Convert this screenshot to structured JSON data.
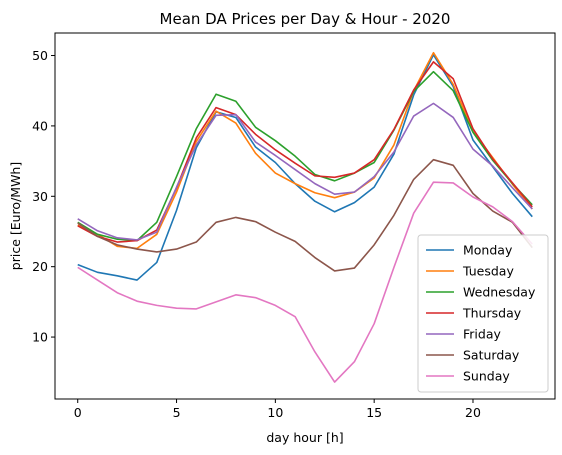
{
  "chart_data": {
    "type": "line",
    "title": "Mean DA Prices per Day & Hour - 2020",
    "xlabel": "day hour [h]",
    "ylabel": "price [Euro/MWh]",
    "xlim": [
      -1.15,
      24.15
    ],
    "ylim": [
      1.2,
      53.2
    ],
    "xticks": [
      0,
      5,
      10,
      15,
      20
    ],
    "yticks": [
      10,
      20,
      30,
      40,
      50
    ],
    "grid": false,
    "legend_position": "lower-right",
    "x": [
      0,
      1,
      2,
      3,
      4,
      5,
      6,
      7,
      8,
      9,
      10,
      11,
      12,
      13,
      14,
      15,
      16,
      17,
      18,
      19,
      20,
      21,
      22,
      23
    ],
    "series": [
      {
        "name": "Monday",
        "color": "#1f77b4",
        "values": [
          20.3,
          19.2,
          18.7,
          18.1,
          20.6,
          28.0,
          36.9,
          42.0,
          41.2,
          37.0,
          34.8,
          31.8,
          29.3,
          27.8,
          29.1,
          31.3,
          36.0,
          44.4,
          50.1,
          45.6,
          38.0,
          34.2,
          30.4,
          27.1
        ]
      },
      {
        "name": "Tuesday",
        "color": "#ff7f0e",
        "values": [
          25.9,
          24.6,
          22.9,
          22.6,
          24.6,
          30.6,
          37.8,
          42.1,
          40.4,
          36.1,
          33.3,
          31.8,
          30.5,
          29.8,
          30.6,
          32.6,
          37.3,
          45.0,
          50.4,
          45.9,
          39.2,
          35.5,
          31.7,
          28.2
        ]
      },
      {
        "name": "Wednesday",
        "color": "#2ca02c",
        "values": [
          26.3,
          24.6,
          23.9,
          23.7,
          26.3,
          32.8,
          39.6,
          44.5,
          43.5,
          39.8,
          37.9,
          35.7,
          33.1,
          32.2,
          33.3,
          34.8,
          39.4,
          44.9,
          47.7,
          45.0,
          39.1,
          35.1,
          31.8,
          28.8
        ]
      },
      {
        "name": "Thursday",
        "color": "#d62728",
        "values": [
          25.8,
          24.3,
          23.5,
          23.7,
          25.2,
          31.2,
          38.3,
          42.6,
          41.6,
          38.8,
          36.6,
          34.7,
          32.9,
          32.7,
          33.3,
          35.2,
          39.5,
          45.1,
          49.1,
          46.7,
          39.6,
          35.3,
          31.9,
          28.5
        ]
      },
      {
        "name": "Friday",
        "color": "#9467bd",
        "values": [
          26.8,
          25.1,
          24.1,
          23.8,
          24.9,
          31.3,
          37.3,
          41.5,
          41.6,
          37.7,
          35.8,
          33.8,
          31.8,
          30.3,
          30.6,
          32.8,
          36.3,
          41.4,
          43.2,
          41.2,
          36.7,
          34.3,
          31.2,
          28.2
        ]
      },
      {
        "name": "Saturday",
        "color": "#8c564b",
        "values": [
          26.2,
          24.3,
          23.1,
          22.5,
          22.1,
          22.5,
          23.5,
          26.3,
          27.0,
          26.4,
          24.9,
          23.6,
          21.3,
          19.4,
          19.8,
          23.1,
          27.3,
          32.4,
          35.2,
          34.4,
          30.4,
          27.9,
          26.3,
          22.7
        ]
      },
      {
        "name": "Sunday",
        "color": "#e377c2",
        "values": [
          19.9,
          18.1,
          16.3,
          15.1,
          14.5,
          14.1,
          14.0,
          15.0,
          16.0,
          15.6,
          14.5,
          12.9,
          7.9,
          3.6,
          6.5,
          11.9,
          19.9,
          27.6,
          32.0,
          31.9,
          29.9,
          28.5,
          26.4,
          23.2
        ]
      }
    ]
  }
}
